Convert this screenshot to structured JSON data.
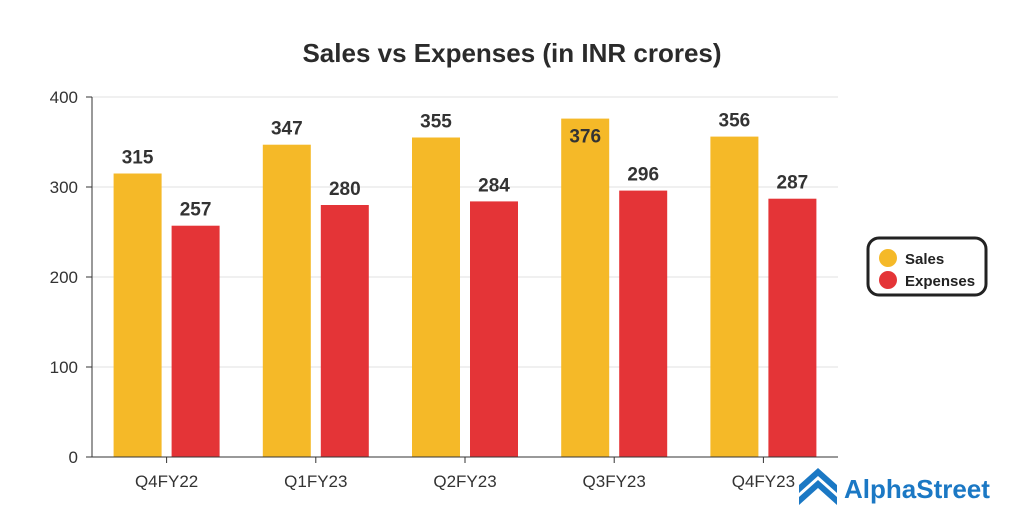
{
  "chart_data": {
    "type": "bar",
    "title": "Sales vs Expenses (in INR crores)",
    "categories": [
      "Q4FY22",
      "Q1FY23",
      "Q2FY23",
      "Q3FY23",
      "Q4FY23"
    ],
    "series": [
      {
        "name": "Sales",
        "values": [
          315,
          347,
          355,
          376,
          356
        ],
        "color": "#f5b928"
      },
      {
        "name": "Expenses",
        "values": [
          257,
          280,
          284,
          296,
          287
        ],
        "color": "#e43437"
      }
    ],
    "ylim": [
      0,
      400
    ],
    "yticks": [
      0,
      100,
      200,
      300,
      400
    ],
    "xlabel": "",
    "ylabel": "",
    "grid": true,
    "legend_position": "right"
  },
  "brand": {
    "name": "AlphaStreet",
    "color": "#1b78c4"
  }
}
